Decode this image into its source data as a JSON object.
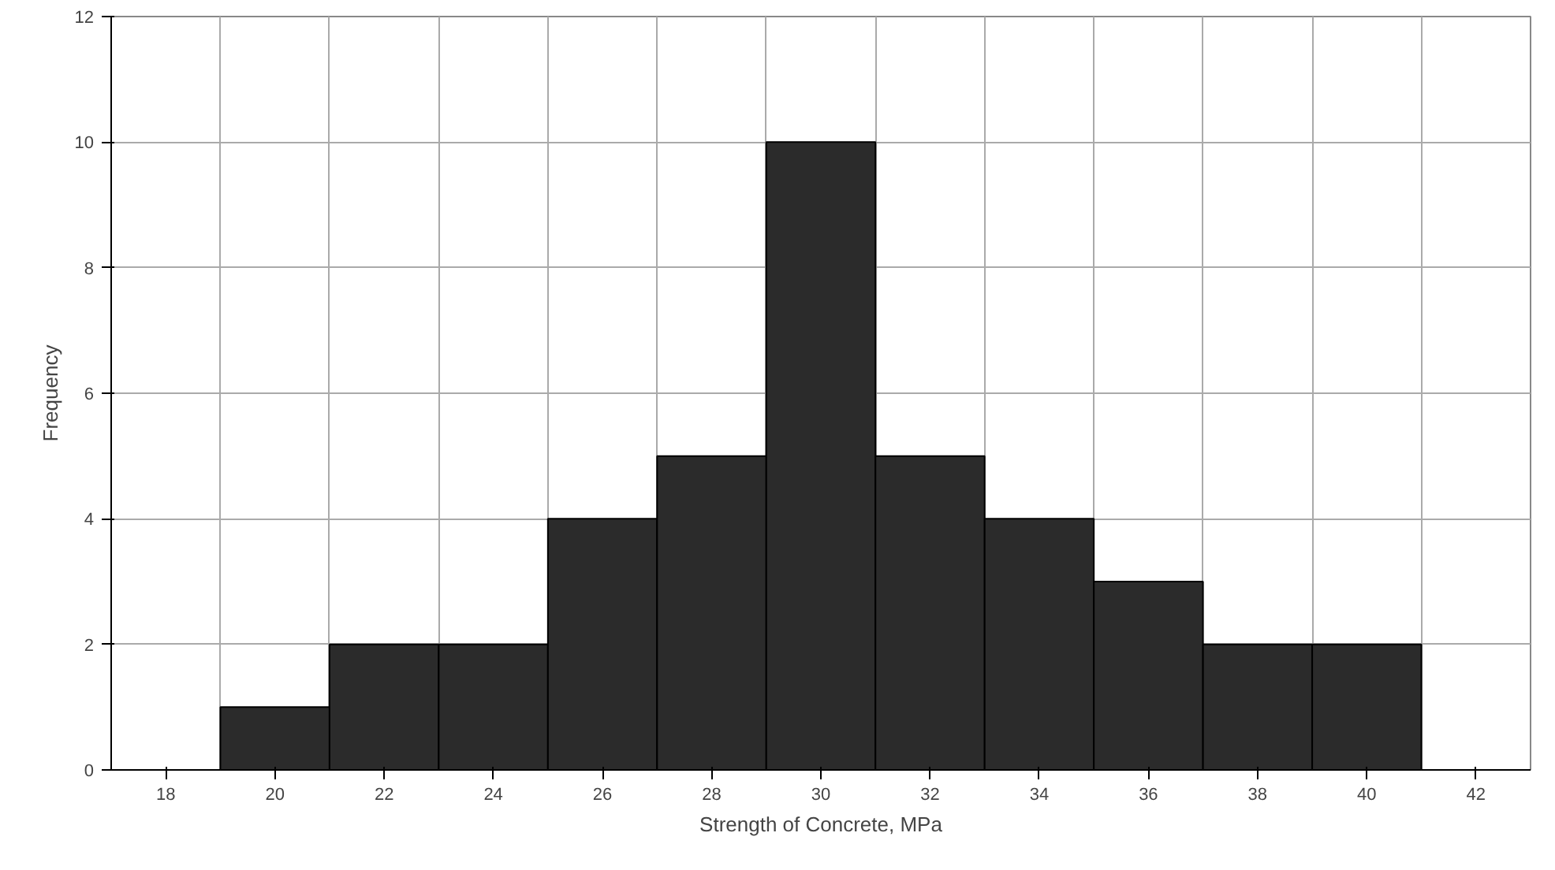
{
  "chart_data": {
    "type": "histogram",
    "xlabel": "Strength of Concrete, MPa",
    "ylabel": "Frequency",
    "bins": [
      19,
      21,
      23,
      25,
      27,
      29,
      31,
      33,
      35,
      37,
      39,
      41
    ],
    "values": [
      1,
      2,
      2,
      4,
      5,
      10,
      5,
      4,
      3,
      2,
      2
    ],
    "color": "#2b2b2b",
    "xlim": [
      17,
      43
    ],
    "xticks": [
      18,
      20,
      22,
      24,
      26,
      28,
      30,
      32,
      34,
      36,
      38,
      40,
      42
    ],
    "ylim": [
      0,
      12
    ],
    "yticks": [
      0,
      2,
      4,
      6,
      8,
      10,
      12
    ],
    "grid": true
  }
}
